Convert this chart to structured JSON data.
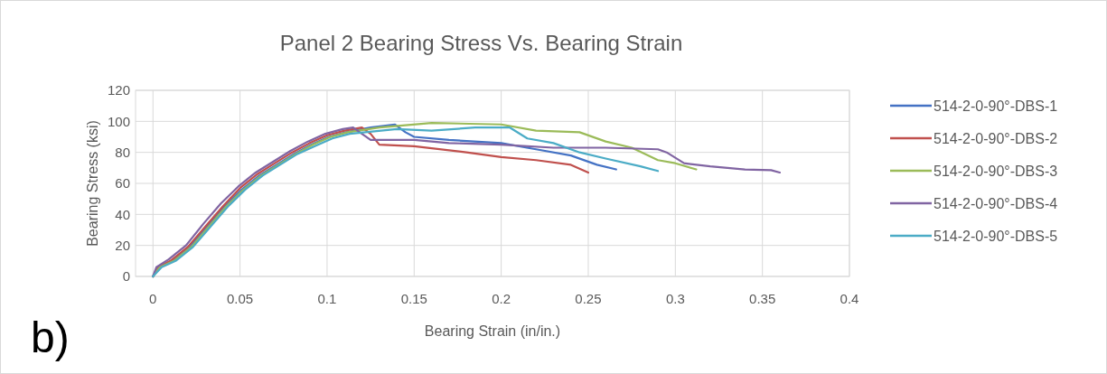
{
  "chart_data": {
    "type": "line",
    "title": "Panel 2 Bearing Stress Vs. Bearing Strain",
    "xlabel": "Bearing Strain (in/in.)",
    "ylabel": "Bearing Stress (ksi)",
    "xlim": [
      -0.01,
      0.4
    ],
    "xticks": [
      0,
      0.05,
      0.1,
      0.15,
      0.2,
      0.25,
      0.3,
      0.35,
      0.4
    ],
    "ylim": [
      0,
      120
    ],
    "yticks": [
      0,
      20,
      40,
      60,
      80,
      100,
      120
    ],
    "grid": true,
    "legend": "right",
    "marker": "none",
    "line_style": "solid",
    "annotations": [
      "b)"
    ],
    "series": [
      {
        "name": "514-2-0-90°-DBS-1",
        "color": "#4472c4",
        "x": [
          0,
          0.004,
          0.011,
          0.021,
          0.031,
          0.041,
          0.051,
          0.061,
          0.071,
          0.081,
          0.091,
          0.101,
          0.111,
          0.125,
          0.139,
          0.145,
          0.15,
          0.17,
          0.2,
          0.22,
          0.24,
          0.255,
          0.266
        ],
        "values": [
          0,
          6,
          10,
          19,
          32,
          45,
          56,
          65,
          72,
          79,
          85,
          90,
          93,
          96,
          98,
          93,
          90,
          88,
          86,
          82,
          78,
          72,
          69
        ]
      },
      {
        "name": "514-2-0-90°-DBS-2",
        "color": "#c0504d",
        "x": [
          0,
          0.003,
          0.01,
          0.02,
          0.03,
          0.04,
          0.05,
          0.06,
          0.07,
          0.08,
          0.09,
          0.1,
          0.11,
          0.12,
          0.125,
          0.13,
          0.15,
          0.18,
          0.2,
          0.22,
          0.24,
          0.25
        ],
        "values": [
          0,
          6,
          10,
          19,
          32,
          45,
          57,
          66,
          73,
          80,
          86,
          91,
          94,
          96,
          92,
          85,
          84,
          80,
          77,
          75,
          72,
          67
        ]
      },
      {
        "name": "514-2-0-90°-DBS-3",
        "color": "#9bbb59",
        "x": [
          0,
          0.004,
          0.012,
          0.022,
          0.032,
          0.042,
          0.052,
          0.062,
          0.072,
          0.082,
          0.092,
          0.102,
          0.112,
          0.13,
          0.16,
          0.2,
          0.22,
          0.245,
          0.26,
          0.275,
          0.29,
          0.3,
          0.312
        ],
        "values": [
          0,
          6,
          10,
          19,
          32,
          45,
          56,
          65,
          72,
          79,
          85,
          90,
          93,
          96,
          99,
          98,
          94,
          93,
          87,
          83,
          75,
          73,
          69
        ]
      },
      {
        "name": "514-2-0-90°-DBS-4",
        "color": "#8064a2",
        "x": [
          0,
          0.002,
          0.009,
          0.019,
          0.029,
          0.039,
          0.049,
          0.059,
          0.069,
          0.079,
          0.089,
          0.099,
          0.109,
          0.115,
          0.12,
          0.125,
          0.15,
          0.17,
          0.2,
          0.23,
          0.26,
          0.29,
          0.295,
          0.305,
          0.32,
          0.34,
          0.355,
          0.36
        ],
        "values": [
          0,
          6,
          11,
          20,
          34,
          47,
          58,
          67,
          74,
          81,
          87,
          92,
          95,
          96,
          92,
          88,
          88,
          86,
          85,
          83,
          83,
          82,
          80,
          73,
          71,
          69,
          68.5,
          67
        ]
      },
      {
        "name": "514-2-0-90°-DBS-5",
        "color": "#4bacc6",
        "x": [
          0,
          0.005,
          0.013,
          0.023,
          0.033,
          0.043,
          0.053,
          0.063,
          0.073,
          0.083,
          0.093,
          0.103,
          0.113,
          0.14,
          0.16,
          0.185,
          0.205,
          0.215,
          0.23,
          0.245,
          0.26,
          0.28,
          0.29
        ],
        "values": [
          0,
          6,
          10,
          19,
          32,
          45,
          56,
          65,
          72,
          79,
          84,
          89,
          92,
          95,
          94,
          96,
          96,
          89,
          86,
          80,
          76,
          71,
          68
        ]
      }
    ]
  }
}
